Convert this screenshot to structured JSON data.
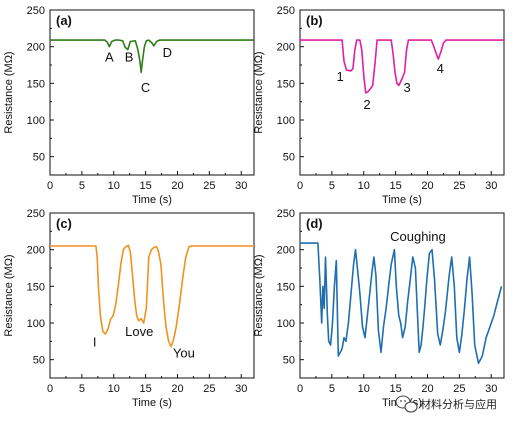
{
  "chart_data": [
    {
      "type": "line",
      "panel_label": "(a)",
      "xlabel": "Time (s)",
      "ylabel": "Resistance (MΩ)",
      "xlim": [
        0,
        32
      ],
      "ylim": [
        25,
        250
      ],
      "xticks": [
        0,
        5,
        10,
        15,
        20,
        25,
        30
      ],
      "yticks": [
        50,
        100,
        150,
        200,
        250
      ],
      "grid": false,
      "series": [
        {
          "color": "#2e7d1a",
          "x": [
            0,
            8.6,
            9.0,
            9.3,
            9.7,
            10.2,
            10.8,
            11.4,
            11.8,
            12.2,
            12.6,
            13.4,
            13.8,
            14.1,
            14.3,
            14.5,
            14.8,
            15.1,
            15.5,
            16.0,
            16.3,
            16.7,
            17.2,
            32
          ],
          "y": [
            209,
            209,
            206,
            200,
            207,
            209,
            209,
            208,
            199,
            196,
            207,
            208,
            195,
            180,
            165,
            180,
            200,
            208,
            209,
            205,
            201,
            207,
            209,
            209
          ]
        }
      ],
      "annotations": [
        {
          "text": "A",
          "x": 9.3,
          "y": 180
        },
        {
          "text": "B",
          "x": 12.4,
          "y": 180
        },
        {
          "text": "C",
          "x": 15.0,
          "y": 138
        },
        {
          "text": "D",
          "x": 18.4,
          "y": 186
        }
      ]
    },
    {
      "type": "line",
      "panel_label": "(b)",
      "xlabel": "Time (s)",
      "ylabel": "Resistance (MΩ)",
      "xlim": [
        0,
        32
      ],
      "ylim": [
        25,
        250
      ],
      "xticks": [
        0,
        5,
        10,
        15,
        20,
        25,
        30
      ],
      "yticks": [
        50,
        100,
        150,
        200,
        250
      ],
      "grid": false,
      "series": [
        {
          "color": "#e020a0",
          "x": [
            0,
            6.6,
            6.9,
            7.3,
            8.0,
            8.3,
            8.6,
            8.9,
            9.4,
            9.7,
            10.0,
            10.3,
            10.6,
            11.0,
            11.4,
            11.8,
            12.1,
            14.3,
            14.6,
            14.9,
            15.2,
            15.5,
            16.0,
            16.4,
            16.7,
            17.0,
            20.6,
            21.0,
            21.4,
            21.7,
            22.1,
            22.5,
            22.9,
            32
          ],
          "y": [
            209,
            209,
            180,
            168,
            167,
            170,
            195,
            209,
            209,
            195,
            160,
            137,
            138,
            142,
            147,
            180,
            209,
            209,
            190,
            165,
            150,
            147,
            156,
            165,
            195,
            209,
            209,
            200,
            190,
            183,
            193,
            205,
            209,
            209
          ]
        }
      ],
      "annotations": [
        {
          "text": "1",
          "x": 6.3,
          "y": 153
        },
        {
          "text": "2",
          "x": 10.5,
          "y": 115
        },
        {
          "text": "3",
          "x": 16.8,
          "y": 138
        },
        {
          "text": "4",
          "x": 22.0,
          "y": 164
        }
      ]
    },
    {
      "type": "line",
      "panel_label": "(c)",
      "xlabel": "Time (s)",
      "ylabel": "Resistance (MΩ)",
      "xlim": [
        0,
        32
      ],
      "ylim": [
        25,
        250
      ],
      "xticks": [
        0,
        5,
        10,
        15,
        20,
        25,
        30
      ],
      "yticks": [
        50,
        100,
        150,
        200,
        250
      ],
      "grid": false,
      "series": [
        {
          "color": "#f0921e",
          "x": [
            0,
            7.2,
            7.4,
            7.6,
            7.9,
            8.3,
            8.7,
            9.1,
            9.5,
            9.9,
            10.3,
            10.7,
            11.1,
            11.5,
            11.9,
            12.3,
            12.6,
            12.9,
            13.3,
            13.6,
            13.9,
            14.3,
            14.7,
            15.1,
            15.5,
            15.9,
            16.3,
            16.7,
            17.0,
            17.4,
            17.8,
            18.2,
            18.6,
            19.0,
            19.4,
            19.8,
            20.3,
            20.8,
            21.3,
            21.8,
            22.2,
            32
          ],
          "y": [
            205,
            205,
            190,
            150,
            110,
            88,
            85,
            92,
            105,
            110,
            125,
            150,
            180,
            200,
            204,
            206,
            197,
            170,
            130,
            110,
            103,
            106,
            100,
            120,
            190,
            200,
            203,
            204,
            198,
            180,
            130,
            95,
            75,
            68,
            78,
            95,
            125,
            160,
            190,
            204,
            205,
            205
          ]
        }
      ],
      "annotations": [
        {
          "text": "I",
          "x": 7.0,
          "y": 68
        },
        {
          "text": "Love",
          "x": 14.0,
          "y": 82
        },
        {
          "text": "You",
          "x": 21.0,
          "y": 53
        }
      ]
    },
    {
      "type": "line",
      "panel_label": "(d)",
      "xlabel": "Time (s)",
      "ylabel": "Resistance (MΩ)",
      "xlim": [
        0,
        32
      ],
      "ylim": [
        25,
        250
      ],
      "xticks": [
        0,
        5,
        10,
        15,
        20,
        25,
        30
      ],
      "yticks": [
        50,
        100,
        150,
        200,
        250
      ],
      "grid": false,
      "series": [
        {
          "color": "#1f6eb0",
          "x": [
            0,
            2.8,
            3.1,
            3.4,
            3.6,
            3.8,
            4.0,
            4.3,
            4.5,
            4.8,
            5.1,
            5.4,
            5.7,
            6.0,
            6.6,
            6.9,
            7.2,
            7.6,
            8.0,
            8.4,
            8.7,
            9.0,
            9.4,
            9.8,
            10.2,
            11.0,
            11.3,
            11.6,
            11.9,
            12.3,
            12.7,
            13.1,
            13.5,
            13.9,
            14.3,
            14.8,
            15.1,
            15.5,
            15.8,
            16.1,
            16.5,
            16.9,
            17.3,
            17.7,
            18.1,
            18.7,
            19.0,
            19.3,
            19.6,
            19.9,
            20.3,
            20.7,
            21.1,
            21.6,
            22.0,
            22.4,
            22.8,
            23.4,
            23.8,
            24.2,
            24.6,
            25.0,
            25.4,
            25.8,
            26.2,
            26.6,
            27.0,
            27.4,
            28.0,
            28.6,
            29.2,
            29.8,
            30.4,
            31.0,
            31.6
          ],
          "y": [
            209,
            209,
            160,
            100,
            150,
            120,
            190,
            110,
            75,
            70,
            100,
            150,
            185,
            55,
            65,
            80,
            75,
            100,
            140,
            180,
            200,
            175,
            140,
            95,
            80,
            145,
            170,
            190,
            165,
            90,
            60,
            95,
            120,
            150,
            180,
            200,
            150,
            110,
            100,
            80,
            95,
            130,
            160,
            190,
            175,
            60,
            70,
            95,
            125,
            160,
            195,
            200,
            160,
            85,
            70,
            90,
            115,
            165,
            190,
            150,
            80,
            60,
            85,
            120,
            160,
            190,
            140,
            70,
            45,
            55,
            80,
            95,
            110,
            130,
            150
          ]
        }
      ],
      "annotations": [
        {
          "text": "Coughing",
          "x": 18.5,
          "y": 212
        }
      ]
    }
  ],
  "watermark": {
    "text": "材料分析与应用",
    "icon": "wechat-icon"
  }
}
